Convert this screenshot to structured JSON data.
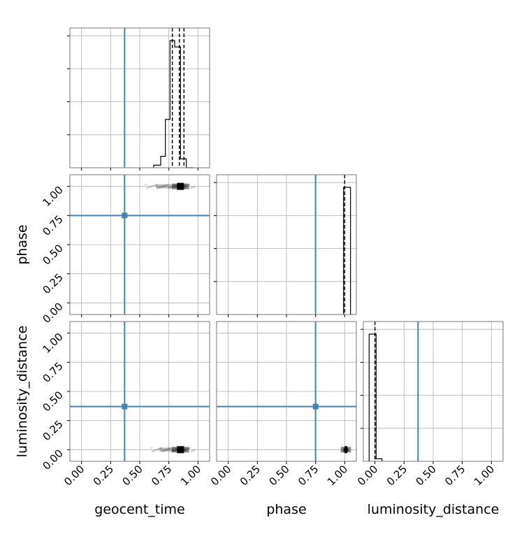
{
  "chart_data": {
    "type": "corner",
    "parameters": [
      "geocent_time",
      "phase",
      "luminosity_distance"
    ],
    "truth_color": "#4682b4",
    "truths": {
      "geocent_time": 0.37,
      "phase": 0.75,
      "luminosity_distance": 0.37
    },
    "axis_range": [
      -0.1,
      1.1
    ],
    "ticks": [
      0.0,
      0.25,
      0.5,
      0.75,
      1.0
    ],
    "tick_labels": [
      "0.00",
      "0.25",
      "0.50",
      "0.75",
      "1.00"
    ],
    "histograms": {
      "geocent_time": {
        "bin_edges": [
          0.62,
          0.68,
          0.72,
          0.76,
          0.8,
          0.85,
          0.9,
          0.96
        ],
        "heights": [
          0.02,
          0.09,
          0.38,
          1.0,
          0.95,
          0.07,
          0.0
        ],
        "quantile_lines": [
          0.78,
          0.84,
          0.88
        ],
        "median": 0.84
      },
      "phase": {
        "bin_edges": [
          0.99,
          1.05
        ],
        "heights": [
          1.0
        ],
        "quantile_lines": [
          1.0
        ],
        "median": 1.0
      },
      "luminosity_distance": {
        "bin_edges": [
          -0.05,
          0.01,
          0.06
        ],
        "heights": [
          1.0,
          0.02
        ],
        "quantile_lines": [
          0.0
        ],
        "median": 0.0
      }
    },
    "density_panels": [
      {
        "x": "geocent_time",
        "y": "phase",
        "x_range": [
          0.55,
          0.97
        ],
        "y_value": 1.0,
        "peak_x": [
          0.8,
          0.9
        ]
      },
      {
        "x": "geocent_time",
        "y": "luminosity_distance",
        "x_range": [
          0.6,
          0.97
        ],
        "y_value": 0.0,
        "peak_x": [
          0.8,
          0.9
        ]
      },
      {
        "x": "phase",
        "y": "luminosity_distance",
        "x_range": [
          0.99,
          1.03
        ],
        "y_value": 0.0,
        "peak_x": [
          0.99,
          1.03
        ]
      }
    ]
  }
}
